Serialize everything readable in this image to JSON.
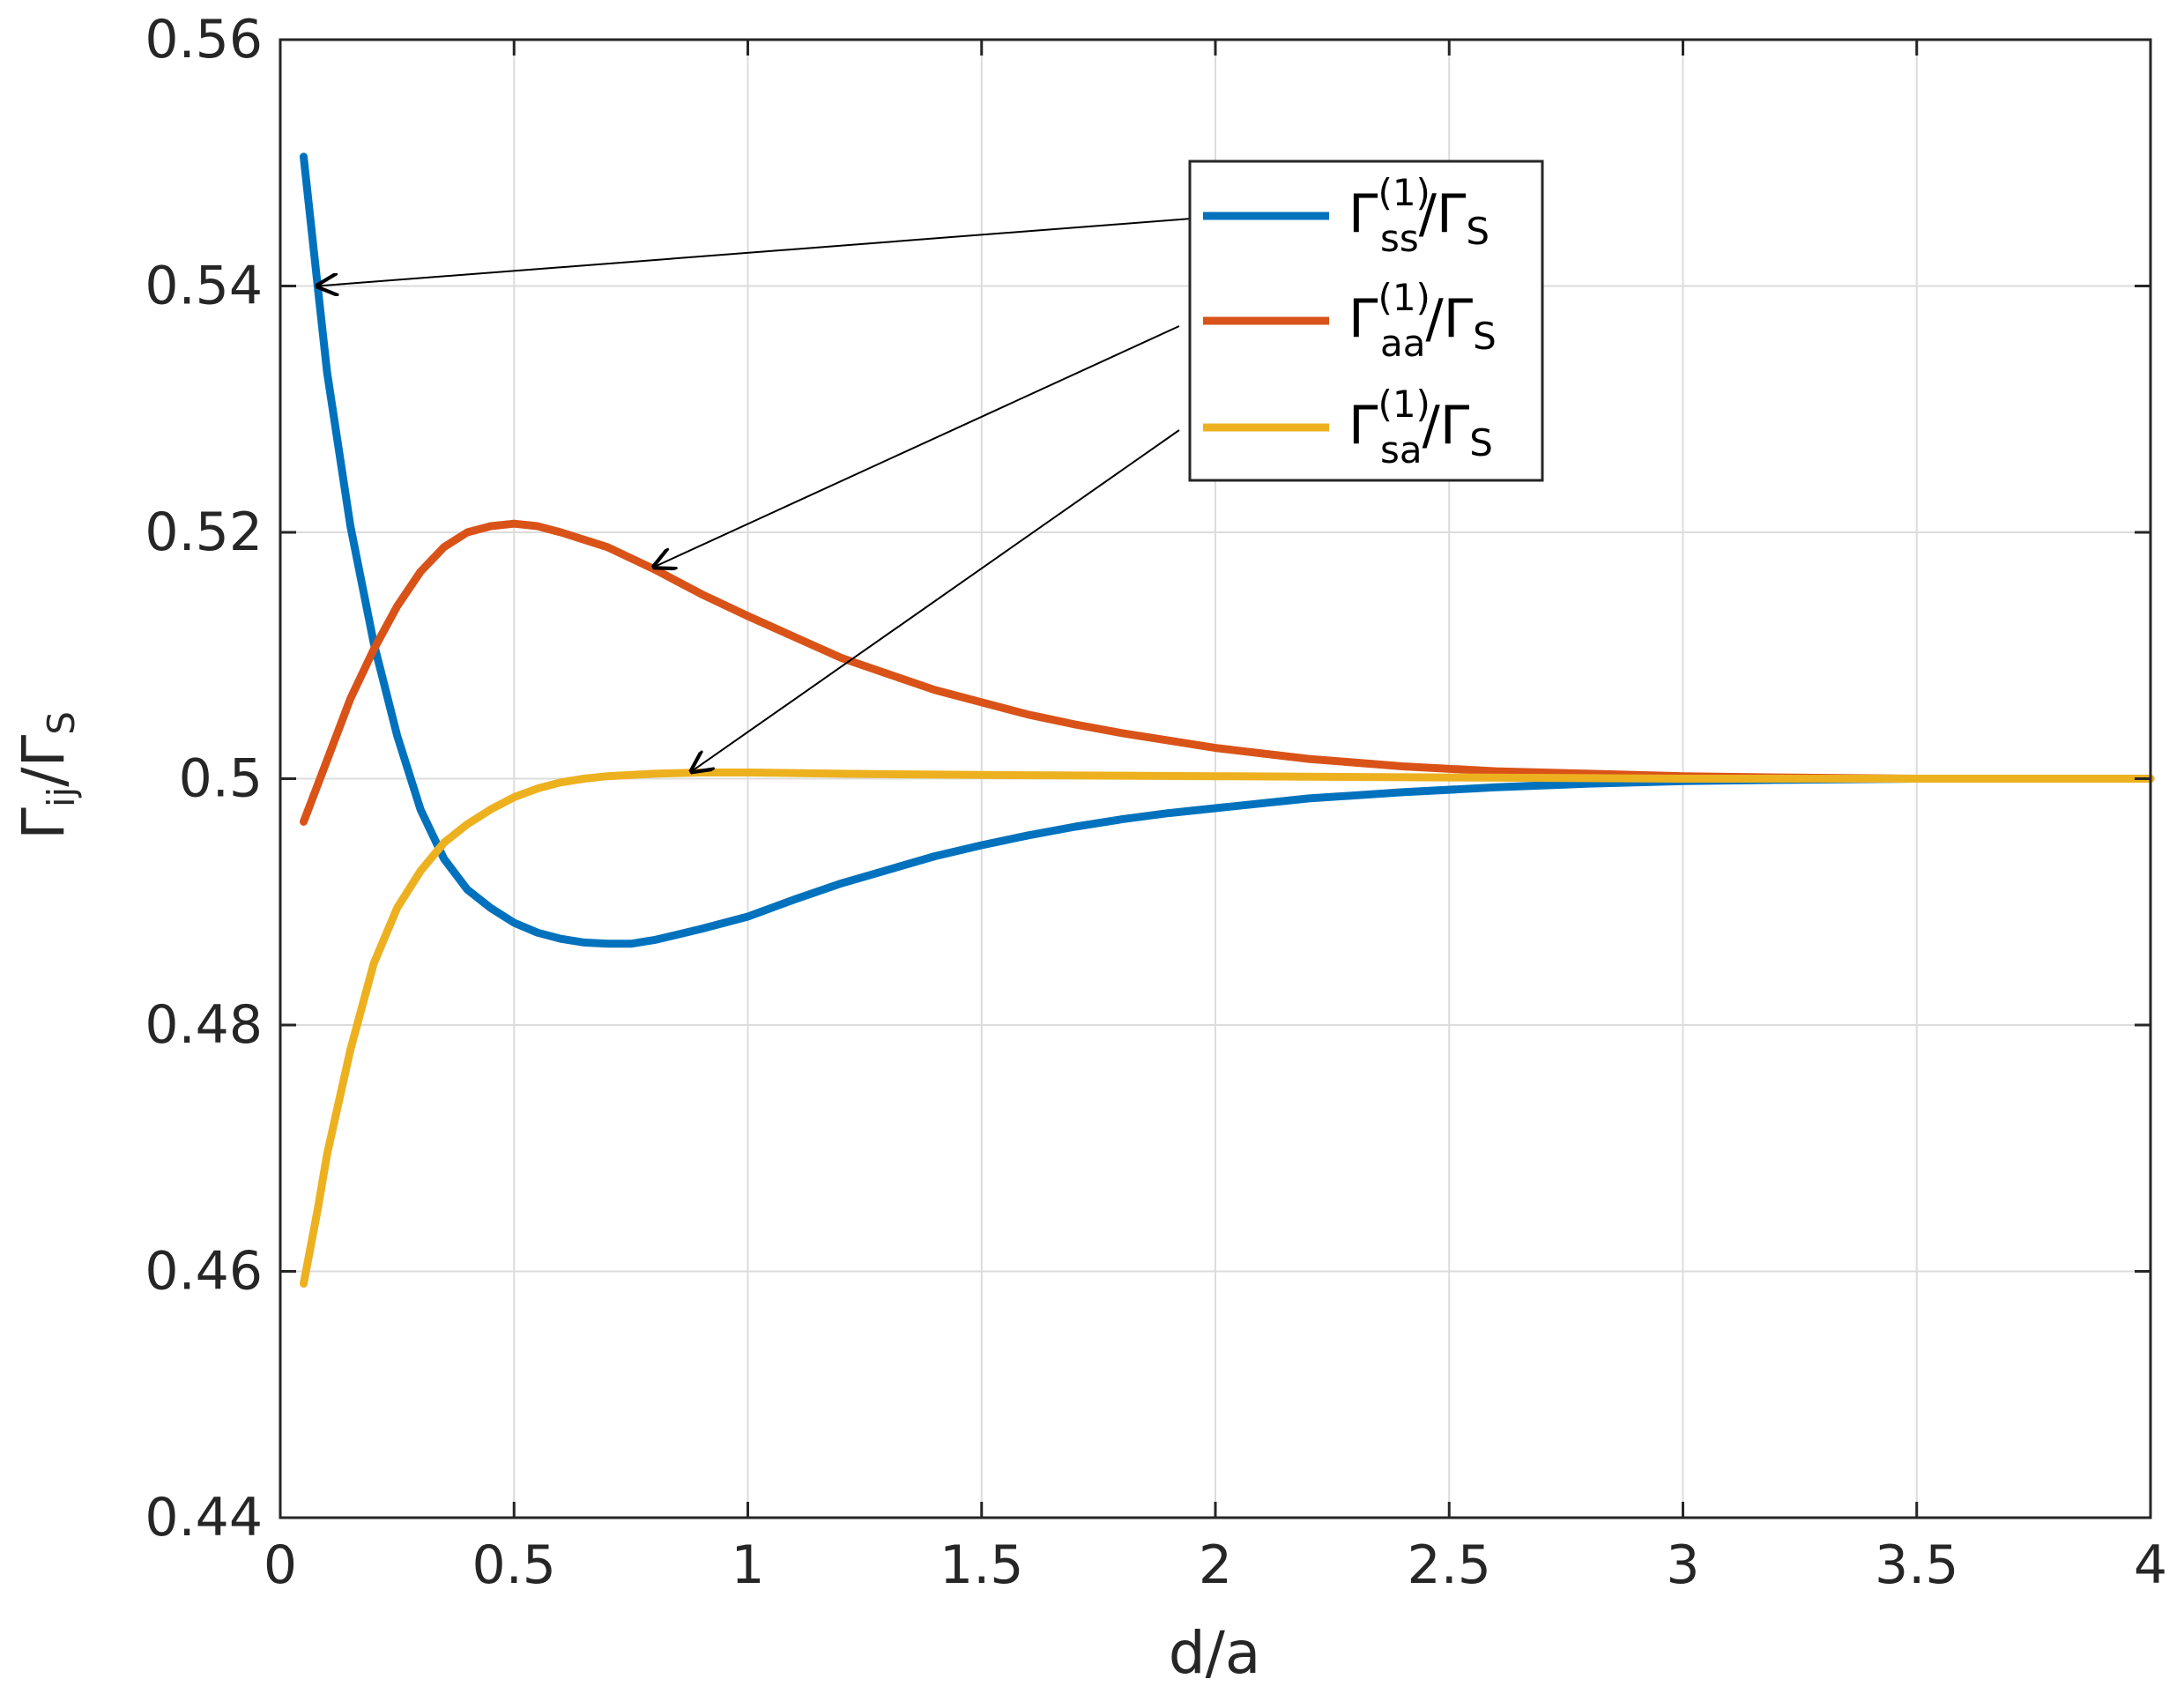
{
  "chart_data": {
    "type": "line",
    "xlabel": "d/a",
    "ylabel": {
      "main": "Γ",
      "sub": "ij",
      "rest": "/Γ",
      "rest_sub": "S"
    },
    "xlim": [
      0,
      4
    ],
    "ylim": [
      0.44,
      0.56
    ],
    "xticks": [
      0,
      0.5,
      1,
      1.5,
      2,
      2.5,
      3,
      3.5,
      4
    ],
    "xtick_labels": [
      "0",
      "0.5",
      "1",
      "1.5",
      "2",
      "2.5",
      "3",
      "3.5",
      "4"
    ],
    "yticks": [
      0.44,
      0.46,
      0.48,
      0.5,
      0.52,
      0.54,
      0.56
    ],
    "ytick_labels": [
      "0.44",
      "0.46",
      "0.48",
      "0.5",
      "0.52",
      "0.54",
      "0.56"
    ],
    "grid": true,
    "legend_position": "top-right",
    "series": [
      {
        "key": "ss",
        "legend": {
          "main": "Γ",
          "sup": "(1)",
          "sub": "ss",
          "rest": "/Γ",
          "rest_sub": "S"
        },
        "color": "#0072BD",
        "arrow_to": [
          0.08,
          0.54
        ],
        "x": [
          0.05,
          0.08,
          0.1,
          0.15,
          0.2,
          0.25,
          0.3,
          0.35,
          0.4,
          0.45,
          0.5,
          0.55,
          0.6,
          0.65,
          0.7,
          0.75,
          0.8,
          0.9,
          1.0,
          1.1,
          1.2,
          1.3,
          1.4,
          1.5,
          1.6,
          1.7,
          1.8,
          1.9,
          2.0,
          2.2,
          2.4,
          2.6,
          2.8,
          3.0,
          3.2,
          3.5,
          4.0
        ],
        "y": [
          0.5505,
          0.54,
          0.533,
          0.5205,
          0.511,
          0.5035,
          0.4975,
          0.4935,
          0.491,
          0.4895,
          0.4883,
          0.4875,
          0.487,
          0.4867,
          0.4866,
          0.4866,
          0.4869,
          0.4878,
          0.4888,
          0.4902,
          0.4915,
          0.4926,
          0.4937,
          0.4946,
          0.4954,
          0.4961,
          0.4967,
          0.4972,
          0.4976,
          0.4984,
          0.4989,
          0.4993,
          0.4996,
          0.4998,
          0.4999,
          0.5,
          0.5
        ]
      },
      {
        "key": "aa",
        "legend": {
          "main": "Γ",
          "sup": "(1)",
          "sub": "aa",
          "rest": "/Γ",
          "rest_sub": "S"
        },
        "color": "#D95319",
        "arrow_to": [
          0.8,
          0.5172
        ],
        "x": [
          0.05,
          0.1,
          0.15,
          0.2,
          0.25,
          0.3,
          0.35,
          0.4,
          0.45,
          0.5,
          0.55,
          0.6,
          0.7,
          0.8,
          0.9,
          1.0,
          1.1,
          1.2,
          1.3,
          1.4,
          1.5,
          1.6,
          1.7,
          1.8,
          1.9,
          2.0,
          2.2,
          2.4,
          2.6,
          2.8,
          3.0,
          3.2,
          3.5,
          4.0
        ],
        "y": [
          0.4965,
          0.5015,
          0.5065,
          0.5105,
          0.514,
          0.5168,
          0.5188,
          0.52,
          0.5205,
          0.5207,
          0.5205,
          0.52,
          0.5188,
          0.517,
          0.515,
          0.5132,
          0.5115,
          0.5098,
          0.5085,
          0.5072,
          0.5062,
          0.5052,
          0.5044,
          0.5037,
          0.5031,
          0.5025,
          0.5016,
          0.501,
          0.5006,
          0.5004,
          0.5002,
          0.5001,
          0.5,
          0.5
        ]
      },
      {
        "key": "sa",
        "legend": {
          "main": "Γ",
          "sup": "(1)",
          "sub": "sa",
          "rest": "/Γ",
          "rest_sub": "S"
        },
        "color": "#EDB120",
        "arrow_to": [
          0.88,
          0.5006
        ],
        "x": [
          0.05,
          0.08,
          0.1,
          0.15,
          0.2,
          0.25,
          0.3,
          0.35,
          0.4,
          0.45,
          0.5,
          0.55,
          0.6,
          0.65,
          0.7,
          0.8,
          0.9,
          1.0,
          1.2,
          1.5,
          2.0,
          2.5,
          3.0,
          3.5,
          4.0
        ],
        "y": [
          0.459,
          0.465,
          0.4695,
          0.478,
          0.485,
          0.4895,
          0.4925,
          0.4948,
          0.4963,
          0.4975,
          0.4985,
          0.4992,
          0.4997,
          0.5,
          0.5002,
          0.5004,
          0.5005,
          0.5005,
          0.5004,
          0.5003,
          0.5002,
          0.5001,
          0.5,
          0.5,
          0.5
        ]
      }
    ]
  }
}
